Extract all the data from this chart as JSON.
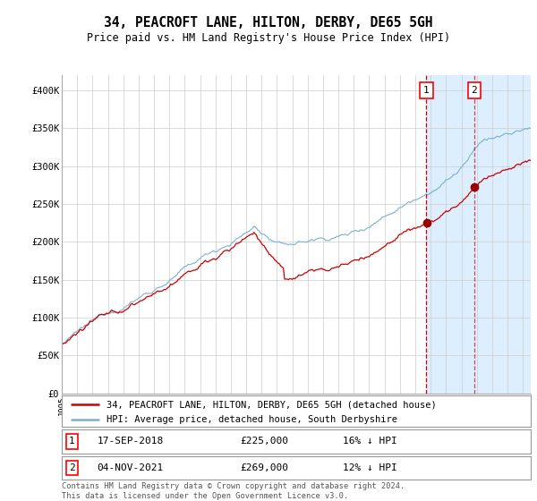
{
  "title": "34, PEACROFT LANE, HILTON, DERBY, DE65 5GH",
  "subtitle": "Price paid vs. HM Land Registry's House Price Index (HPI)",
  "hpi_color": "#7ab0d4",
  "price_color": "#cc0000",
  "marker_color": "#990000",
  "background_color": "#ffffff",
  "plot_bg_color": "#ffffff",
  "shaded_color": "#ddeeff",
  "grid_color": "#cccccc",
  "ylim": [
    0,
    420000
  ],
  "yticks": [
    0,
    50000,
    100000,
    150000,
    200000,
    250000,
    300000,
    350000,
    400000
  ],
  "sale1_date": "17-SEP-2018",
  "sale1_price": 225000,
  "sale1_pct": "16%",
  "sale2_date": "04-NOV-2021",
  "sale2_price": 269000,
  "sale2_pct": "12%",
  "legend_label_red": "34, PEACROFT LANE, HILTON, DERBY, DE65 5GH (detached house)",
  "legend_label_blue": "HPI: Average price, detached house, South Derbyshire",
  "footnote": "Contains HM Land Registry data © Crown copyright and database right 2024.\nThis data is licensed under the Open Government Licence v3.0.",
  "sale1_x": 2018.72,
  "sale2_x": 2021.84,
  "xstart": 1995,
  "xend": 2025.5
}
